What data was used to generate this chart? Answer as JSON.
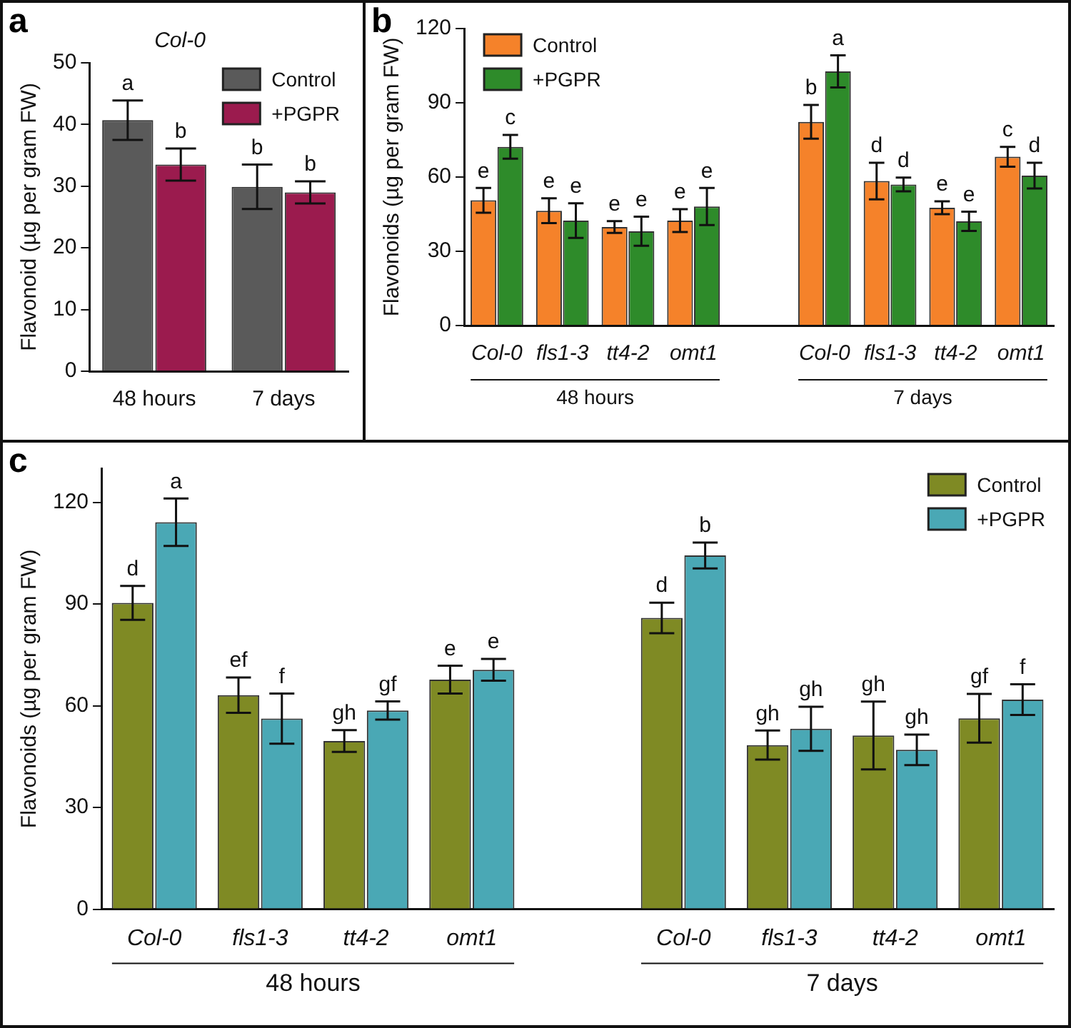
{
  "chart_data": [
    {
      "type": "bar",
      "title": "Col-0",
      "ylabel": "Flavonoid (µg per gram FW)",
      "categories": [
        "48 hours",
        "7 days"
      ],
      "series": [
        {
          "name": "Control",
          "color": "#5a5a5a",
          "values": [
            40.7,
            29.9
          ],
          "errors": [
            3.2,
            3.6
          ],
          "value_labels": [
            "a",
            "b"
          ]
        },
        {
          "name": "+PGPR",
          "color": "#9b1b4e",
          "values": [
            33.5,
            29.0
          ],
          "errors": [
            2.6,
            1.8
          ],
          "value_labels": [
            "b",
            "b"
          ]
        }
      ],
      "ylim": [
        0,
        50
      ],
      "yticks": [
        0,
        10,
        20,
        30,
        40,
        50
      ],
      "grid": false,
      "legend": "top right",
      "annotations": [
        "a"
      ]
    },
    {
      "type": "bar",
      "ylabel": "Flavonoids (µg per gram FW)",
      "categories": [
        "Col-0",
        "fls1-3",
        "tt4-2",
        "omt1",
        null,
        "Col-0",
        "fls1-3",
        "tt4-2",
        "omt1"
      ],
      "series": [
        {
          "name": "Control",
          "color": "#f5822a",
          "values": [
            50.6,
            46.4,
            39.8,
            42.4,
            null,
            82.3,
            58.4,
            47.6,
            68.2
          ],
          "errors": [
            5,
            5,
            2.4,
            4.6,
            null,
            6.8,
            7.4,
            2.6,
            4
          ],
          "value_labels": [
            "e",
            "e",
            "e",
            "e",
            null,
            "b",
            "d",
            "e",
            "c"
          ]
        },
        {
          "name": "+PGPR",
          "color": "#2e8b2a",
          "values": [
            72.2,
            42.4,
            38.1,
            48.1,
            null,
            102.7,
            57.0,
            42.1,
            60.6
          ],
          "errors": [
            4.8,
            7,
            5.9,
            7.5,
            null,
            6.5,
            2.8,
            3.9,
            5.2
          ],
          "value_labels": [
            "c",
            "e",
            "e",
            "e",
            null,
            "a",
            "d",
            "e",
            "d"
          ]
        }
      ],
      "ylim": [
        0,
        120
      ],
      "yticks": [
        0,
        30,
        60,
        90,
        120
      ],
      "grid": false,
      "legend": "top left",
      "annotations": [
        "b",
        "48 hours",
        "7 days"
      ]
    },
    {
      "type": "bar",
      "ylabel": "Flavonoids (µg per gram FW)",
      "categories": [
        "Col-0",
        "fls1-3",
        "tt4-2",
        "omt1",
        null,
        "Col-0",
        "fls1-3",
        "tt4-2",
        "omt1"
      ],
      "series": [
        {
          "name": "Control",
          "color": "#7f8a24",
          "values": [
            90.3,
            63.1,
            49.6,
            67.7,
            null,
            85.9,
            48.4,
            51.2,
            56.3
          ],
          "errors": [
            5,
            5.2,
            3.2,
            4.1,
            null,
            4.5,
            4.3,
            10,
            7.2
          ],
          "value_labels": [
            "d",
            "ef",
            "gh",
            "e",
            null,
            "d",
            "gh",
            "gh",
            "gf"
          ]
        },
        {
          "name": "+PGPR",
          "color": "#4aa8b5",
          "values": [
            114.1,
            56.2,
            58.6,
            70.6,
            null,
            104.3,
            53.2,
            47.0,
            61.8
          ],
          "errors": [
            7,
            7.4,
            2.7,
            3.2,
            null,
            3.8,
            6.5,
            4.5,
            4.5
          ],
          "value_labels": [
            "a",
            "f",
            "gf",
            "e",
            null,
            "b",
            "gh",
            "gh",
            "f"
          ]
        }
      ],
      "ylim": [
        0,
        130
      ],
      "yticks": [
        0,
        30,
        60,
        90,
        120
      ],
      "grid": false,
      "legend": "top right",
      "annotations": [
        "c",
        "48 hours",
        "7 days"
      ]
    }
  ]
}
